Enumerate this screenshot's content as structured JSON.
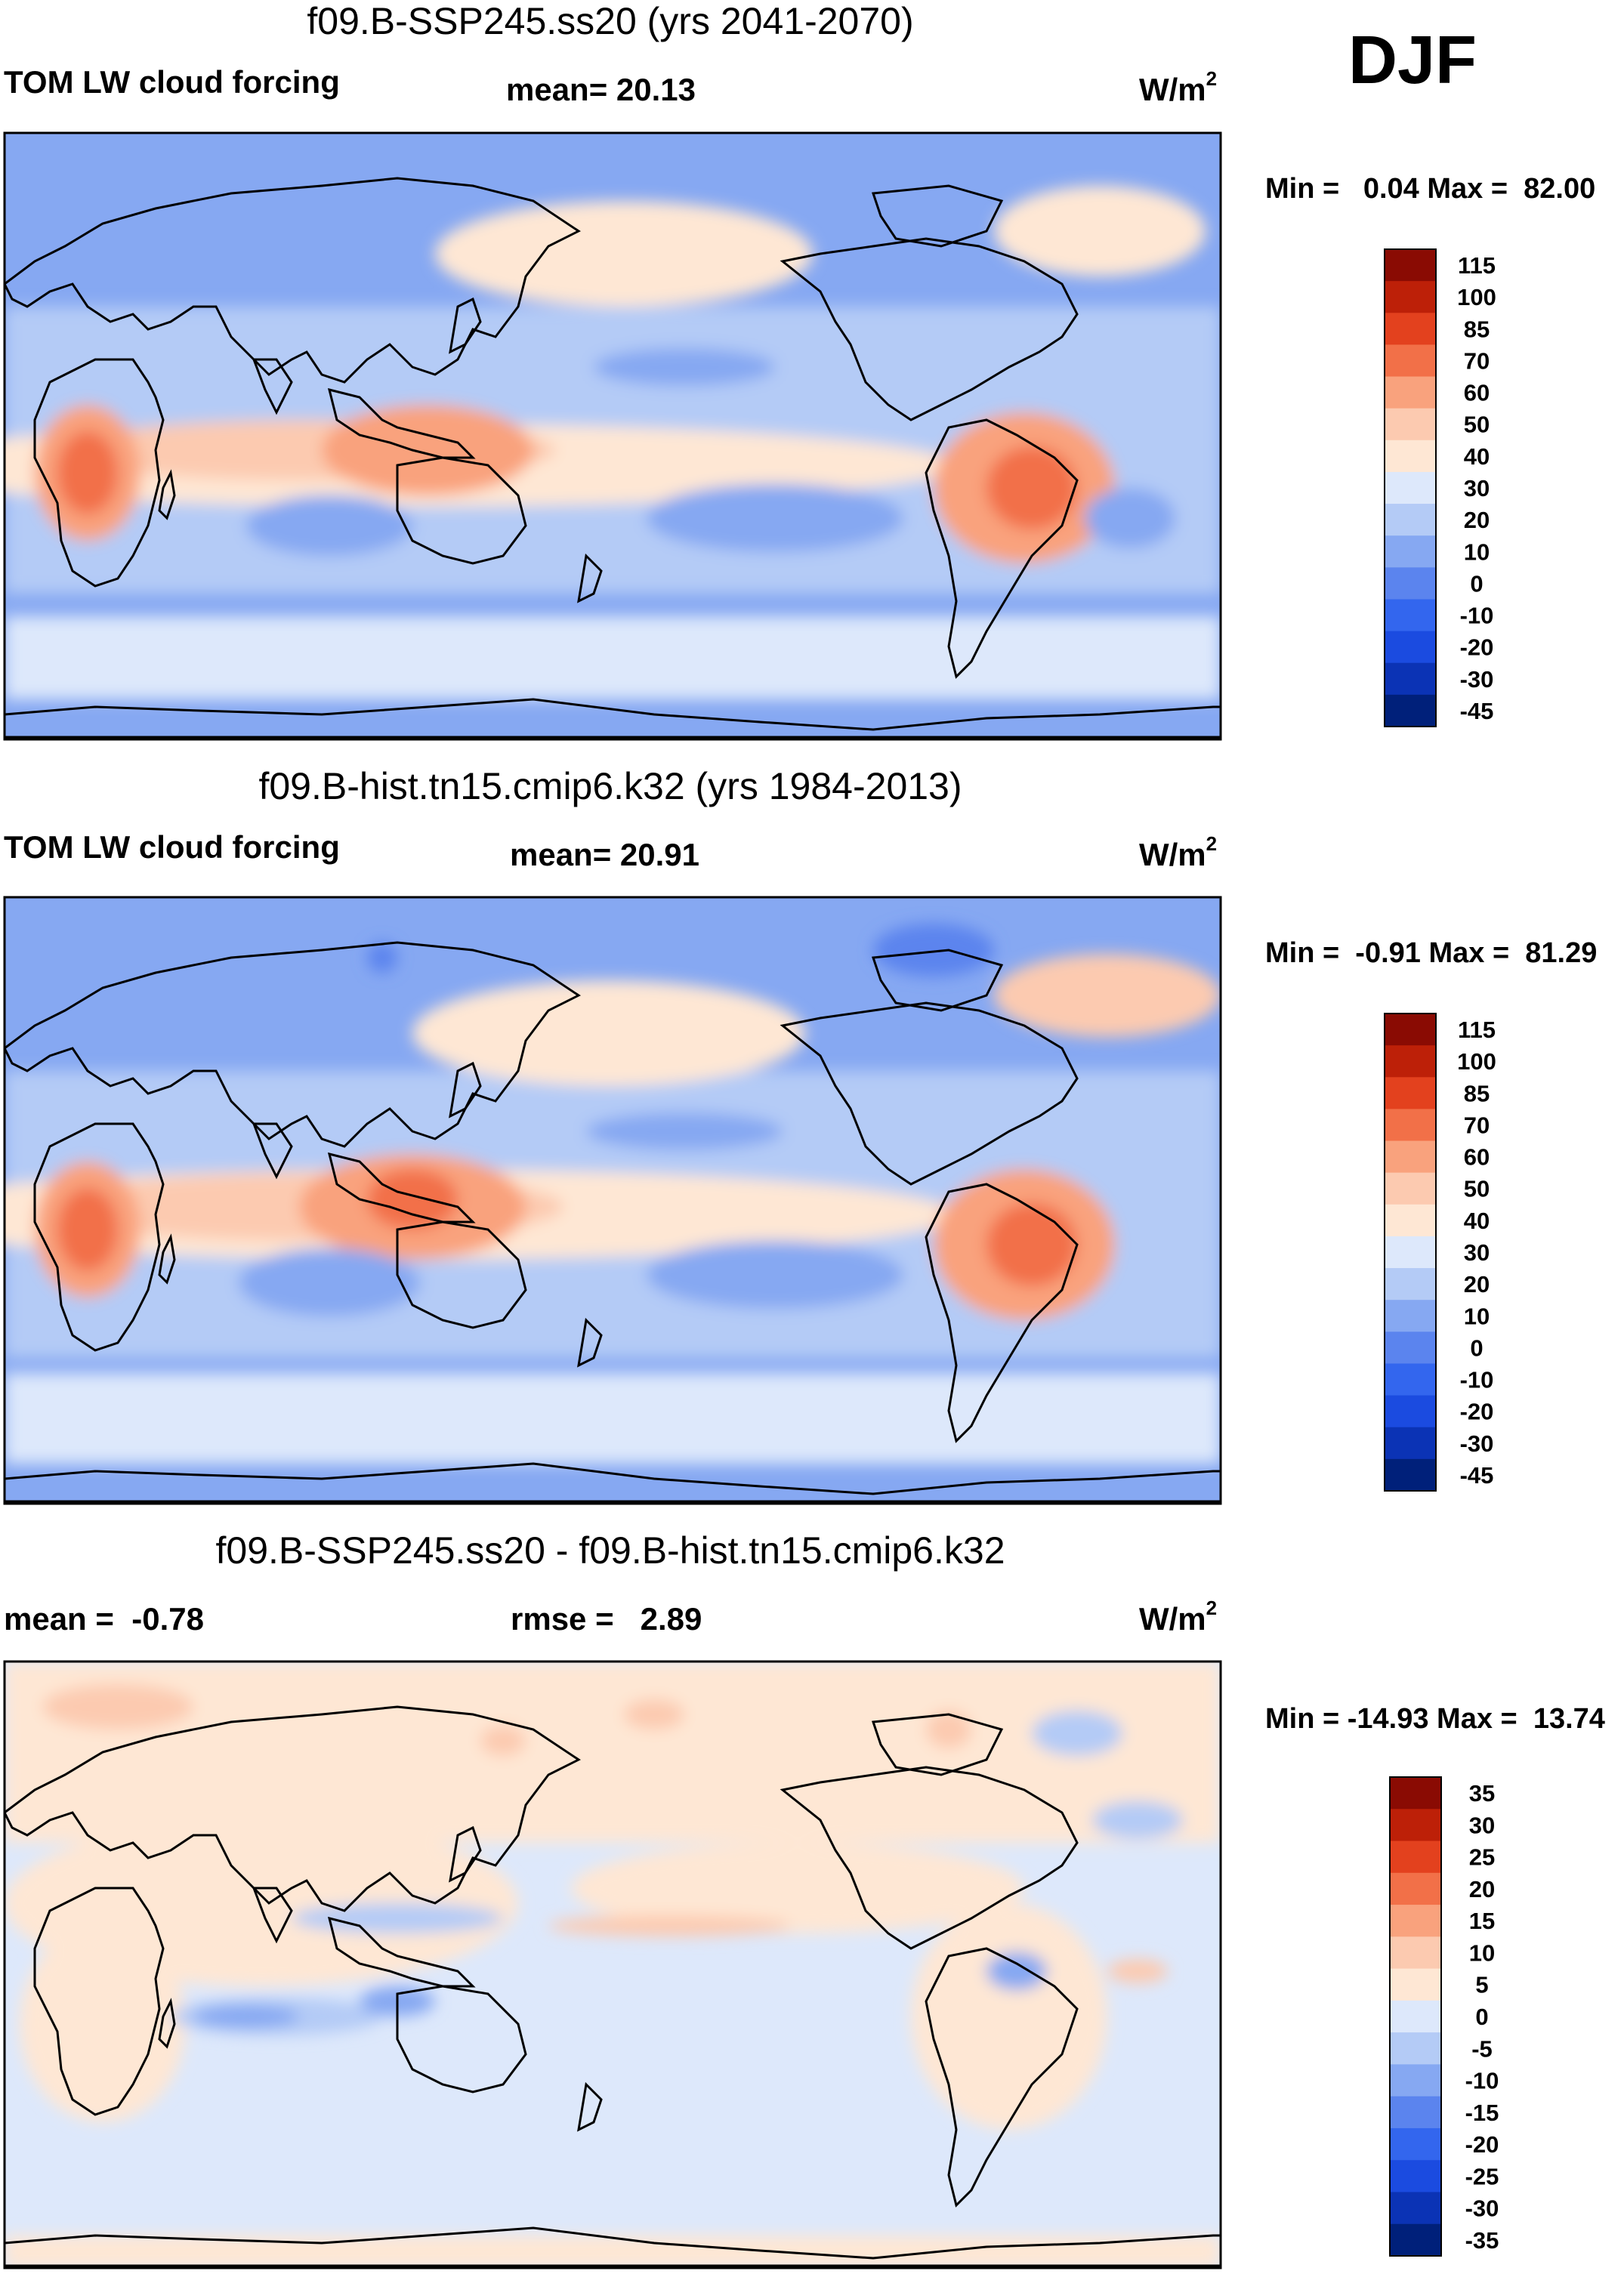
{
  "season": "DJF",
  "colors": {
    "cloud_forcing_levels": [
      "#00207a",
      "#0b33b5",
      "#1b4be0",
      "#3366ee",
      "#5b84ee",
      "#86a8f2",
      "#b4cbf6",
      "#dde8fb",
      "#fee7d4",
      "#fccab0",
      "#f9a27d",
      "#f27048",
      "#e3411e",
      "#bd2008",
      "#8a0b03"
    ],
    "difference_levels": [
      "#00207a",
      "#0b33b5",
      "#1b4be0",
      "#3366ee",
      "#5b84ee",
      "#86a8f2",
      "#b4cbf6",
      "#dde8fb",
      "#fee7d4",
      "#fccab0",
      "#f9a27d",
      "#f27048",
      "#e3411e",
      "#bd2008",
      "#8a0b03"
    ],
    "coastline": "#000000"
  },
  "panels": [
    {
      "title": "f09.B-SSP245.ss20 (yrs 2041-2070)",
      "left_label": "TOM LW cloud forcing",
      "center_label": "mean=  20.13",
      "units_base": "W/m",
      "units_exp": "2",
      "minmax": "Min =   0.04 Max =  82.00"
    },
    {
      "title": "f09.B-hist.tn15.cmip6.k32 (yrs 1984-2013)",
      "left_label": "TOM LW cloud forcing",
      "center_label": "mean=  20.91",
      "units_base": "W/m",
      "units_exp": "2",
      "minmax": "Min =  -0.91 Max =  81.29"
    },
    {
      "title": "f09.B-SSP245.ss20 - f09.B-hist.tn15.cmip6.k32",
      "left_label": "mean =  -0.78",
      "center_label": "rmse =   2.89",
      "units_base": "W/m",
      "units_exp": "2",
      "minmax": "Min = -14.93 Max =  13.74"
    }
  ],
  "chart_data": [
    {
      "type": "heatmap",
      "field": "TOM LW cloud forcing",
      "mean": 20.13,
      "min": 0.04,
      "max": 82.0,
      "colorbar_labels": [
        "115",
        "100",
        "85",
        "70",
        "60",
        "50",
        "40",
        "30",
        "20",
        "10",
        "0",
        "-10",
        "-20",
        "-30",
        "-45"
      ],
      "colorbar_levels": [
        115,
        100,
        85,
        70,
        60,
        50,
        40,
        30,
        20,
        10,
        0,
        -10,
        -20,
        -30,
        -45
      ]
    },
    {
      "type": "heatmap",
      "field": "TOM LW cloud forcing",
      "mean": 20.91,
      "min": -0.91,
      "max": 81.29,
      "colorbar_labels": [
        "115",
        "100",
        "85",
        "70",
        "60",
        "50",
        "40",
        "30",
        "20",
        "10",
        "0",
        "-10",
        "-20",
        "-30",
        "-45"
      ],
      "colorbar_levels": [
        115,
        100,
        85,
        70,
        60,
        50,
        40,
        30,
        20,
        10,
        0,
        -10,
        -20,
        -30,
        -45
      ]
    },
    {
      "type": "heatmap",
      "field": "difference",
      "mean": -0.78,
      "rmse": 2.89,
      "min": -14.93,
      "max": 13.74,
      "colorbar_labels": [
        "35",
        "30",
        "25",
        "20",
        "15",
        "10",
        "5",
        "0",
        "-5",
        "-10",
        "-15",
        "-20",
        "-25",
        "-30",
        "-35"
      ],
      "colorbar_levels": [
        35,
        30,
        25,
        20,
        15,
        10,
        5,
        0,
        -5,
        -10,
        -15,
        -20,
        -25,
        -30,
        -35
      ]
    }
  ]
}
